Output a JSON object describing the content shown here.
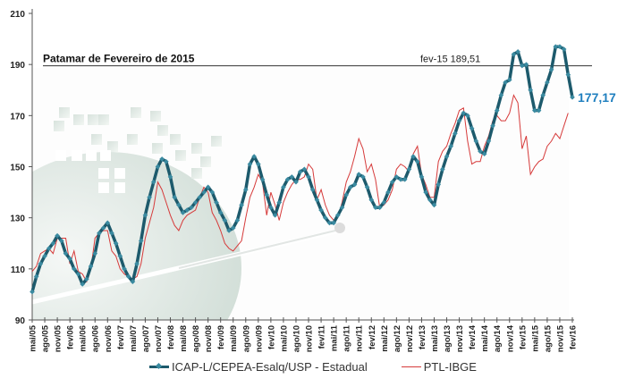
{
  "chart_data": {
    "type": "line",
    "title": "",
    "xlabel": "",
    "ylabel": "",
    "ylim": [
      90,
      210
    ],
    "yticks": [
      90,
      110,
      130,
      150,
      170,
      190,
      210
    ],
    "x_start": "mai/05",
    "x_tick_labels": [
      "mai/05",
      "ago/05",
      "nov/05",
      "fev/06",
      "mai/06",
      "ago/06",
      "nov/06",
      "fev/07",
      "mai/07",
      "ago/07",
      "nov/07",
      "fev/08",
      "mai/08",
      "ago/08",
      "nov/08",
      "fev/09",
      "mai/09",
      "ago/09",
      "nov/09",
      "fev/10",
      "mai/10",
      "ago/10",
      "nov/10",
      "fev/11",
      "mai/11",
      "ago/11",
      "nov/11",
      "fev/12",
      "mai/12",
      "ago/12",
      "nov/12",
      "fev/13",
      "mai/13",
      "ago/13",
      "nov/13",
      "fev/14",
      "mai/14",
      "ago/14",
      "nov/14",
      "fev/15",
      "mai/15",
      "ago/15",
      "nov/15",
      "fev/16"
    ],
    "months_count": 130,
    "series": [
      {
        "name": "ICAP-L/CEPEA-Esalq/USP - Estadual",
        "color": "#1d5a6c",
        "marker_color": "#3a8aa0",
        "values": [
          101,
          107,
          112,
          115,
          118,
          120,
          123,
          121,
          116,
          114,
          110,
          108,
          104,
          106,
          111,
          116,
          124,
          126,
          128,
          124,
          120,
          115,
          110,
          107,
          105,
          112,
          121,
          131,
          138,
          144,
          150,
          153,
          152,
          146,
          138,
          135,
          132,
          133,
          134,
          136,
          138,
          140,
          142,
          140,
          136,
          132,
          129,
          125,
          126,
          129,
          135,
          141,
          151,
          154,
          151,
          145,
          139,
          134,
          131,
          136,
          142,
          145,
          146,
          144,
          148,
          149,
          146,
          141,
          137,
          133,
          130,
          128,
          128,
          131,
          134,
          139,
          142,
          143,
          147,
          146,
          142,
          137,
          134,
          134,
          136,
          140,
          144,
          146,
          145,
          145,
          149,
          154,
          152,
          146,
          140,
          137,
          135,
          143,
          149,
          154,
          158,
          163,
          168,
          171,
          170,
          165,
          160,
          156,
          155,
          160,
          166,
          172,
          178,
          183,
          184,
          194,
          195,
          189.51,
          190,
          180,
          172,
          172,
          178,
          183,
          188,
          197,
          197,
          196,
          186,
          177.17
        ]
      },
      {
        "name": "PTL-IBGE",
        "color": "#d63a3a",
        "values": [
          109,
          111,
          116,
          117,
          118,
          116,
          122,
          122,
          122,
          112,
          117,
          109,
          108,
          105,
          110,
          122,
          124,
          125,
          125,
          117,
          115,
          110,
          108,
          107,
          106,
          107,
          112,
          122,
          128,
          134,
          144,
          141,
          136,
          131,
          127,
          125,
          129,
          131,
          132,
          133,
          138,
          142,
          140,
          132,
          129,
          125,
          120,
          118,
          117,
          119,
          121,
          130,
          138,
          142,
          147,
          144,
          131,
          140,
          135,
          129,
          136,
          140,
          143,
          145,
          145,
          146,
          151,
          149,
          137,
          141,
          135,
          131,
          129,
          130,
          136,
          144,
          148,
          154,
          161,
          157,
          148,
          151,
          145,
          134,
          135,
          137,
          141,
          149,
          151,
          150,
          148,
          155,
          158,
          147,
          143,
          138,
          138,
          152,
          156,
          158,
          163,
          167,
          172,
          173,
          160,
          151,
          152,
          152,
          158,
          162,
          168,
          170,
          168,
          168,
          171,
          178,
          175,
          157,
          162,
          147,
          150,
          152,
          153,
          158,
          160,
          163,
          161,
          166,
          171
        ]
      }
    ],
    "reference_line": {
      "value": 189.51,
      "label_left": "Patamar de Fevereiro de 2015",
      "label_right": "fev-15 189,51"
    },
    "last_value_label": "177,17",
    "legend_position": "bottom",
    "grid": false
  }
}
